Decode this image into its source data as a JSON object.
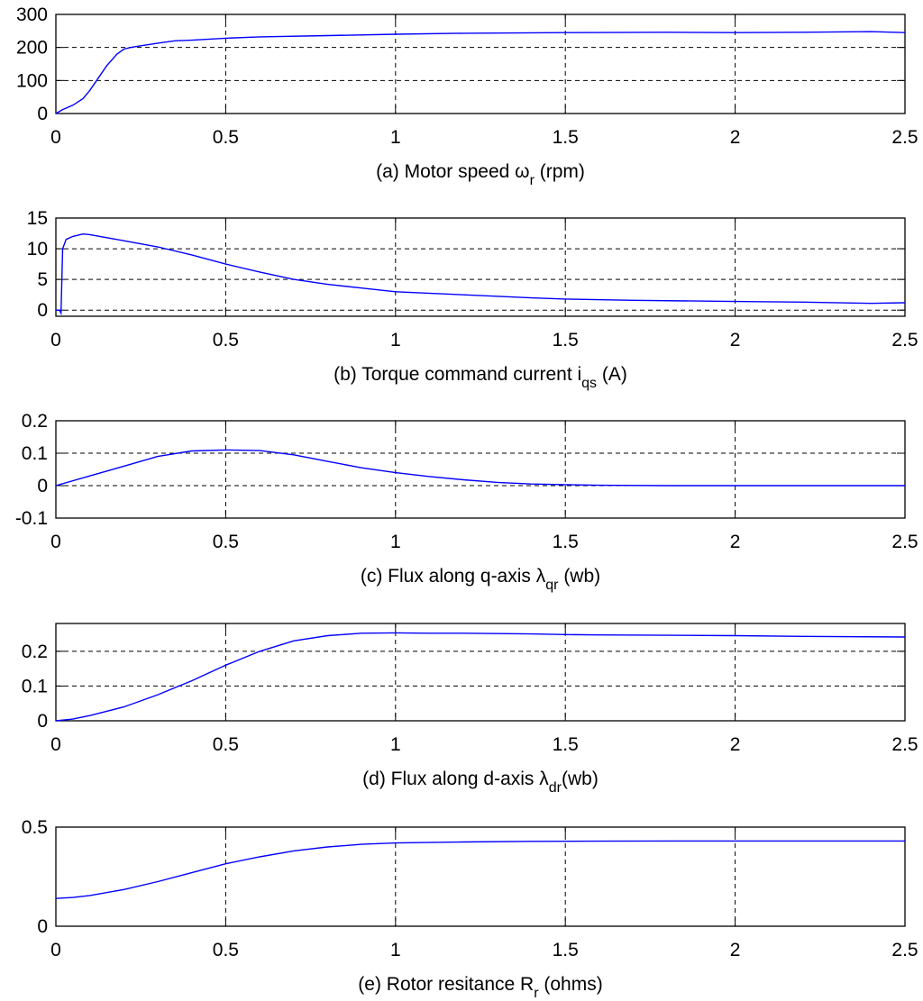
{
  "chart_data": [
    {
      "type": "line",
      "caption": {
        "pre": "(a) Motor speed ω",
        "sub": "r",
        "post": " (rpm)"
      },
      "xlim": [
        0,
        2.5
      ],
      "ylim": [
        0,
        300
      ],
      "xticks": [
        0,
        0.5,
        1,
        1.5,
        2,
        2.5
      ],
      "xtick_labels": [
        "0",
        "0.5",
        "1",
        "1.5",
        "2",
        "2.5"
      ],
      "yticks": [
        0,
        100,
        200,
        300
      ],
      "ytick_labels": [
        "0",
        "100",
        "200",
        "300"
      ],
      "grid": true,
      "series": [
        {
          "name": "speed",
          "color": "#0000ff",
          "x": [
            0,
            0.02,
            0.05,
            0.08,
            0.1,
            0.12,
            0.15,
            0.18,
            0.2,
            0.22,
            0.25,
            0.3,
            0.35,
            0.4,
            0.5,
            0.6,
            0.8,
            1.0,
            1.2,
            1.5,
            1.8,
            2.0,
            2.2,
            2.4,
            2.5
          ],
          "y": [
            0,
            12,
            25,
            45,
            70,
            100,
            145,
            180,
            195,
            200,
            205,
            213,
            220,
            222,
            228,
            232,
            236,
            240,
            243,
            245,
            246,
            245,
            246,
            248,
            245
          ]
        }
      ]
    },
    {
      "type": "line",
      "caption": {
        "pre": "(b) Torque command current i",
        "sub": "qs",
        "post": " (A)"
      },
      "xlim": [
        0,
        2.5
      ],
      "ylim": [
        -1,
        15
      ],
      "xticks": [
        0,
        0.5,
        1,
        1.5,
        2,
        2.5
      ],
      "xtick_labels": [
        "0",
        "0.5",
        "1",
        "1.5",
        "2",
        "2.5"
      ],
      "yticks": [
        0,
        5,
        10,
        15
      ],
      "ytick_labels": [
        "0",
        "5",
        "10",
        "15"
      ],
      "grid": true,
      "series": [
        {
          "name": "iqs",
          "color": "#0000ff",
          "x": [
            0,
            0.01,
            0.015,
            0.02,
            0.03,
            0.05,
            0.08,
            0.1,
            0.15,
            0.2,
            0.3,
            0.4,
            0.5,
            0.6,
            0.7,
            0.8,
            0.9,
            1.0,
            1.2,
            1.4,
            1.5,
            1.7,
            2.0,
            2.2,
            2.4,
            2.5
          ],
          "y": [
            0,
            0,
            -0.5,
            10,
            11.5,
            12,
            12.4,
            12.3,
            11.8,
            11.3,
            10.3,
            9,
            7.5,
            6.2,
            5,
            4.2,
            3.6,
            3,
            2.5,
            2,
            1.8,
            1.6,
            1.4,
            1.3,
            1.1,
            1.2
          ]
        }
      ]
    },
    {
      "type": "line",
      "caption": {
        "pre": "(c) Flux along q-axis λ",
        "sub": "qr",
        "post": " (wb)"
      },
      "xlim": [
        0,
        2.5
      ],
      "ylim": [
        -0.1,
        0.2
      ],
      "xticks": [
        0,
        0.5,
        1,
        1.5,
        2,
        2.5
      ],
      "xtick_labels": [
        "0",
        "0.5",
        "1",
        "1.5",
        "2",
        "2.5"
      ],
      "yticks": [
        -0.1,
        0,
        0.1,
        0.2
      ],
      "ytick_labels": [
        "-0.1",
        "0",
        "0.1",
        "0.2"
      ],
      "grid": true,
      "series": [
        {
          "name": "lambda_qr",
          "color": "#0000ff",
          "x": [
            0,
            0.1,
            0.2,
            0.3,
            0.4,
            0.5,
            0.6,
            0.7,
            0.8,
            0.9,
            1.0,
            1.1,
            1.2,
            1.3,
            1.4,
            1.5,
            1.6,
            1.8,
            2.0,
            2.5
          ],
          "y": [
            0,
            0.03,
            0.06,
            0.09,
            0.107,
            0.11,
            0.108,
            0.095,
            0.075,
            0.055,
            0.04,
            0.028,
            0.018,
            0.01,
            0.005,
            0.003,
            0.001,
            0,
            0,
            0
          ]
        }
      ]
    },
    {
      "type": "line",
      "caption": {
        "pre": "(d) Flux along d-axis λ",
        "sub": "dr",
        "post": "(wb)"
      },
      "xlim": [
        0,
        2.5
      ],
      "ylim": [
        0,
        0.28
      ],
      "xticks": [
        0,
        0.5,
        1,
        1.5,
        2,
        2.5
      ],
      "xtick_labels": [
        "0",
        "0.5",
        "1",
        "1.5",
        "2",
        "2.5"
      ],
      "yticks": [
        0,
        0.1,
        0.2
      ],
      "ytick_labels": [
        "0",
        "0.1",
        "0.2"
      ],
      "grid": true,
      "series": [
        {
          "name": "lambda_dr",
          "color": "#0000ff",
          "x": [
            0,
            0.05,
            0.1,
            0.2,
            0.3,
            0.4,
            0.5,
            0.6,
            0.7,
            0.8,
            0.9,
            1.0,
            1.1,
            1.2,
            1.4,
            1.5,
            1.6,
            1.8,
            2.0,
            2.2,
            2.5
          ],
          "y": [
            0,
            0.005,
            0.015,
            0.04,
            0.075,
            0.115,
            0.16,
            0.2,
            0.23,
            0.245,
            0.252,
            0.253,
            0.252,
            0.252,
            0.25,
            0.248,
            0.247,
            0.246,
            0.245,
            0.243,
            0.241
          ]
        }
      ]
    },
    {
      "type": "line",
      "caption": {
        "pre": "(e) Rotor resitance R",
        "sub": "r",
        "post": " (ohms)"
      },
      "xlim": [
        0,
        2.5
      ],
      "ylim": [
        0,
        0.5
      ],
      "xticks": [
        0,
        0.5,
        1,
        1.5,
        2,
        2.5
      ],
      "xtick_labels": [
        "0",
        "0.5",
        "1",
        "1.5",
        "2",
        "2.5"
      ],
      "yticks": [
        0,
        0.5
      ],
      "ytick_labels": [
        "0",
        "0.5"
      ],
      "grid": true,
      "series": [
        {
          "name": "Rr",
          "color": "#0000ff",
          "x": [
            0,
            0.05,
            0.1,
            0.2,
            0.3,
            0.4,
            0.5,
            0.6,
            0.7,
            0.8,
            0.9,
            1.0,
            1.2,
            1.4,
            1.6,
            1.8,
            2.0,
            2.5
          ],
          "y": [
            0.14,
            0.145,
            0.155,
            0.185,
            0.225,
            0.27,
            0.315,
            0.35,
            0.38,
            0.4,
            0.413,
            0.42,
            0.425,
            0.428,
            0.429,
            0.43,
            0.43,
            0.43
          ]
        }
      ]
    }
  ]
}
